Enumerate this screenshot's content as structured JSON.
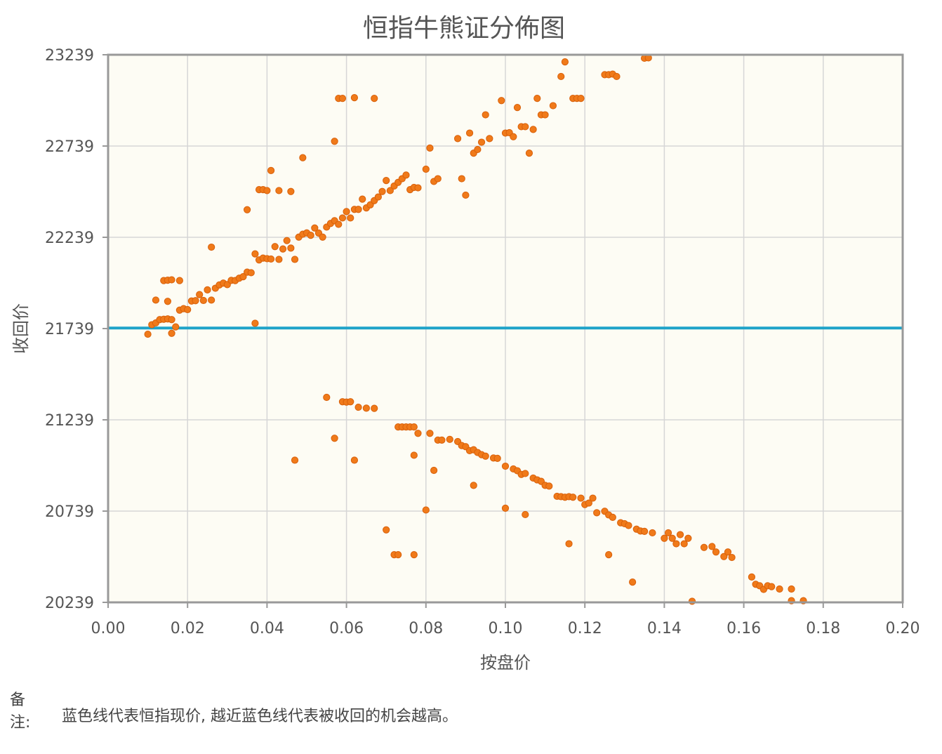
{
  "chart_data": {
    "type": "scatter",
    "title": "恒指牛熊证分佈图",
    "xlabel": "按盘价",
    "ylabel": "收回价",
    "xlim": [
      0,
      0.2
    ],
    "ylim": [
      20239,
      23239
    ],
    "xticks": [
      "0.00",
      "0.02",
      "0.04",
      "0.06",
      "0.08",
      "0.10",
      "0.12",
      "0.14",
      "0.16",
      "0.18",
      "0.20"
    ],
    "yticks": [
      "20239",
      "20739",
      "21239",
      "21739",
      "22239",
      "22739",
      "23239"
    ],
    "grid": true,
    "reference_line": {
      "y": 21742,
      "color": "#1fa3c9"
    },
    "marker_color": "#f07a1a",
    "plot_background": "#fdfcf4",
    "points": [
      [
        0.01,
        21708
      ],
      [
        0.011,
        21760
      ],
      [
        0.012,
        21770
      ],
      [
        0.013,
        21788
      ],
      [
        0.014,
        21790
      ],
      [
        0.015,
        21792
      ],
      [
        0.016,
        21713
      ],
      [
        0.017,
        21748
      ],
      [
        0.016,
        21788
      ],
      [
        0.012,
        21895
      ],
      [
        0.014,
        22002
      ],
      [
        0.015,
        22004
      ],
      [
        0.016,
        22006
      ],
      [
        0.018,
        22002
      ],
      [
        0.015,
        21888
      ],
      [
        0.018,
        21840
      ],
      [
        0.019,
        21848
      ],
      [
        0.02,
        21843
      ],
      [
        0.021,
        21890
      ],
      [
        0.022,
        21892
      ],
      [
        0.023,
        21925
      ],
      [
        0.024,
        21893
      ],
      [
        0.025,
        21951
      ],
      [
        0.026,
        21895
      ],
      [
        0.027,
        21960
      ],
      [
        0.028,
        21978
      ],
      [
        0.029,
        21988
      ],
      [
        0.03,
        21980
      ],
      [
        0.031,
        22003
      ],
      [
        0.032,
        22002
      ],
      [
        0.033,
        22015
      ],
      [
        0.034,
        22023
      ],
      [
        0.035,
        22048
      ],
      [
        0.036,
        22045
      ],
      [
        0.037,
        22148
      ],
      [
        0.038,
        22115
      ],
      [
        0.039,
        22125
      ],
      [
        0.04,
        22122
      ],
      [
        0.041,
        22120
      ],
      [
        0.042,
        22188
      ],
      [
        0.043,
        22118
      ],
      [
        0.044,
        22175
      ],
      [
        0.045,
        22221
      ],
      [
        0.046,
        22180
      ],
      [
        0.047,
        22118
      ],
      [
        0.048,
        22240
      ],
      [
        0.049,
        22256
      ],
      [
        0.05,
        22263
      ],
      [
        0.051,
        22250
      ],
      [
        0.052,
        22290
      ],
      [
        0.053,
        22262
      ],
      [
        0.054,
        22240
      ],
      [
        0.055,
        22295
      ],
      [
        0.056,
        22315
      ],
      [
        0.057,
        22330
      ],
      [
        0.058,
        22310
      ],
      [
        0.059,
        22345
      ],
      [
        0.06,
        22380
      ],
      [
        0.061,
        22345
      ],
      [
        0.062,
        22392
      ],
      [
        0.063,
        22392
      ],
      [
        0.064,
        22448
      ],
      [
        0.065,
        22400
      ],
      [
        0.066,
        22417
      ],
      [
        0.067,
        22440
      ],
      [
        0.068,
        22460
      ],
      [
        0.069,
        22490
      ],
      [
        0.07,
        22550
      ],
      [
        0.071,
        22495
      ],
      [
        0.072,
        22520
      ],
      [
        0.073,
        22540
      ],
      [
        0.074,
        22560
      ],
      [
        0.075,
        22580
      ],
      [
        0.076,
        22500
      ],
      [
        0.077,
        22512
      ],
      [
        0.078,
        22510
      ],
      [
        0.08,
        22612
      ],
      [
        0.081,
        22728
      ],
      [
        0.082,
        22545
      ],
      [
        0.083,
        22560
      ],
      [
        0.088,
        22780
      ],
      [
        0.089,
        22560
      ],
      [
        0.09,
        22470
      ],
      [
        0.091,
        22810
      ],
      [
        0.092,
        22700
      ],
      [
        0.093,
        22720
      ],
      [
        0.094,
        22760
      ],
      [
        0.095,
        22910
      ],
      [
        0.096,
        22780
      ],
      [
        0.099,
        22988
      ],
      [
        0.1,
        22810
      ],
      [
        0.101,
        22812
      ],
      [
        0.102,
        22790
      ],
      [
        0.103,
        22950
      ],
      [
        0.104,
        22845
      ],
      [
        0.105,
        22845
      ],
      [
        0.106,
        22700
      ],
      [
        0.107,
        22830
      ],
      [
        0.108,
        23000
      ],
      [
        0.109,
        22910
      ],
      [
        0.11,
        22910
      ],
      [
        0.112,
        22960
      ],
      [
        0.114,
        23120
      ],
      [
        0.115,
        23200
      ],
      [
        0.117,
        23000
      ],
      [
        0.118,
        23000
      ],
      [
        0.119,
        23000
      ],
      [
        0.125,
        23130
      ],
      [
        0.126,
        23130
      ],
      [
        0.127,
        23133
      ],
      [
        0.128,
        23120
      ],
      [
        0.135,
        23220
      ],
      [
        0.136,
        23222
      ],
      [
        0.035,
        22390
      ],
      [
        0.038,
        22500
      ],
      [
        0.039,
        22500
      ],
      [
        0.04,
        22495
      ],
      [
        0.041,
        22605
      ],
      [
        0.043,
        22495
      ],
      [
        0.046,
        22490
      ],
      [
        0.049,
        22675
      ],
      [
        0.037,
        21768
      ],
      [
        0.026,
        22185
      ],
      [
        0.057,
        22765
      ],
      [
        0.058,
        23000
      ],
      [
        0.059,
        23000
      ],
      [
        0.062,
        23004
      ],
      [
        0.067,
        23000
      ],
      [
        0.055,
        21362
      ],
      [
        0.057,
        21138
      ],
      [
        0.059,
        21338
      ],
      [
        0.06,
        21336
      ],
      [
        0.061,
        21338
      ],
      [
        0.063,
        21308
      ],
      [
        0.065,
        21303
      ],
      [
        0.067,
        21302
      ],
      [
        0.047,
        21018
      ],
      [
        0.062,
        21018
      ],
      [
        0.073,
        21200
      ],
      [
        0.074,
        21200
      ],
      [
        0.075,
        21200
      ],
      [
        0.076,
        21200
      ],
      [
        0.077,
        21200
      ],
      [
        0.078,
        21165
      ],
      [
        0.081,
        21165
      ],
      [
        0.083,
        21128
      ],
      [
        0.084,
        21128
      ],
      [
        0.086,
        21132
      ],
      [
        0.088,
        21120
      ],
      [
        0.089,
        21098
      ],
      [
        0.09,
        21092
      ],
      [
        0.091,
        21070
      ],
      [
        0.092,
        21075
      ],
      [
        0.093,
        21060
      ],
      [
        0.094,
        21048
      ],
      [
        0.095,
        21040
      ],
      [
        0.097,
        21030
      ],
      [
        0.098,
        21028
      ],
      [
        0.1,
        20985
      ],
      [
        0.102,
        20970
      ],
      [
        0.103,
        20960
      ],
      [
        0.104,
        20940
      ],
      [
        0.105,
        20945
      ],
      [
        0.107,
        20920
      ],
      [
        0.108,
        20910
      ],
      [
        0.109,
        20902
      ],
      [
        0.11,
        20880
      ],
      [
        0.111,
        20876
      ],
      [
        0.113,
        20820
      ],
      [
        0.114,
        20818
      ],
      [
        0.115,
        20815
      ],
      [
        0.116,
        20818
      ],
      [
        0.117,
        20815
      ],
      [
        0.119,
        20810
      ],
      [
        0.12,
        20775
      ],
      [
        0.121,
        20783
      ],
      [
        0.122,
        20810
      ],
      [
        0.123,
        20730
      ],
      [
        0.125,
        20738
      ],
      [
        0.126,
        20718
      ],
      [
        0.127,
        20705
      ],
      [
        0.129,
        20675
      ],
      [
        0.13,
        20670
      ],
      [
        0.131,
        20660
      ],
      [
        0.133,
        20640
      ],
      [
        0.134,
        20630
      ],
      [
        0.135,
        20628
      ],
      [
        0.137,
        20620
      ],
      [
        0.14,
        20590
      ],
      [
        0.141,
        20620
      ],
      [
        0.142,
        20590
      ],
      [
        0.143,
        20560
      ],
      [
        0.144,
        20610
      ],
      [
        0.145,
        20560
      ],
      [
        0.146,
        20590
      ],
      [
        0.15,
        20540
      ],
      [
        0.152,
        20545
      ],
      [
        0.153,
        20515
      ],
      [
        0.155,
        20490
      ],
      [
        0.156,
        20515
      ],
      [
        0.157,
        20485
      ],
      [
        0.162,
        20378
      ],
      [
        0.163,
        20338
      ],
      [
        0.164,
        20330
      ],
      [
        0.165,
        20310
      ],
      [
        0.166,
        20330
      ],
      [
        0.167,
        20325
      ],
      [
        0.169,
        20312
      ],
      [
        0.172,
        20312
      ],
      [
        0.175,
        20248
      ],
      [
        0.147,
        20245
      ],
      [
        0.172,
        20248
      ],
      [
        0.07,
        20636
      ],
      [
        0.072,
        20500
      ],
      [
        0.073,
        20500
      ],
      [
        0.077,
        20500
      ],
      [
        0.08,
        20745
      ],
      [
        0.082,
        20962
      ],
      [
        0.077,
        21045
      ],
      [
        0.092,
        20880
      ],
      [
        0.1,
        20755
      ],
      [
        0.105,
        20720
      ],
      [
        0.116,
        20560
      ],
      [
        0.126,
        20500
      ],
      [
        0.132,
        20350
      ]
    ]
  },
  "note": {
    "label": "备注:",
    "text": "蓝色线代表恒指现价, 越近蓝色线代表被收回的机会越高。"
  }
}
